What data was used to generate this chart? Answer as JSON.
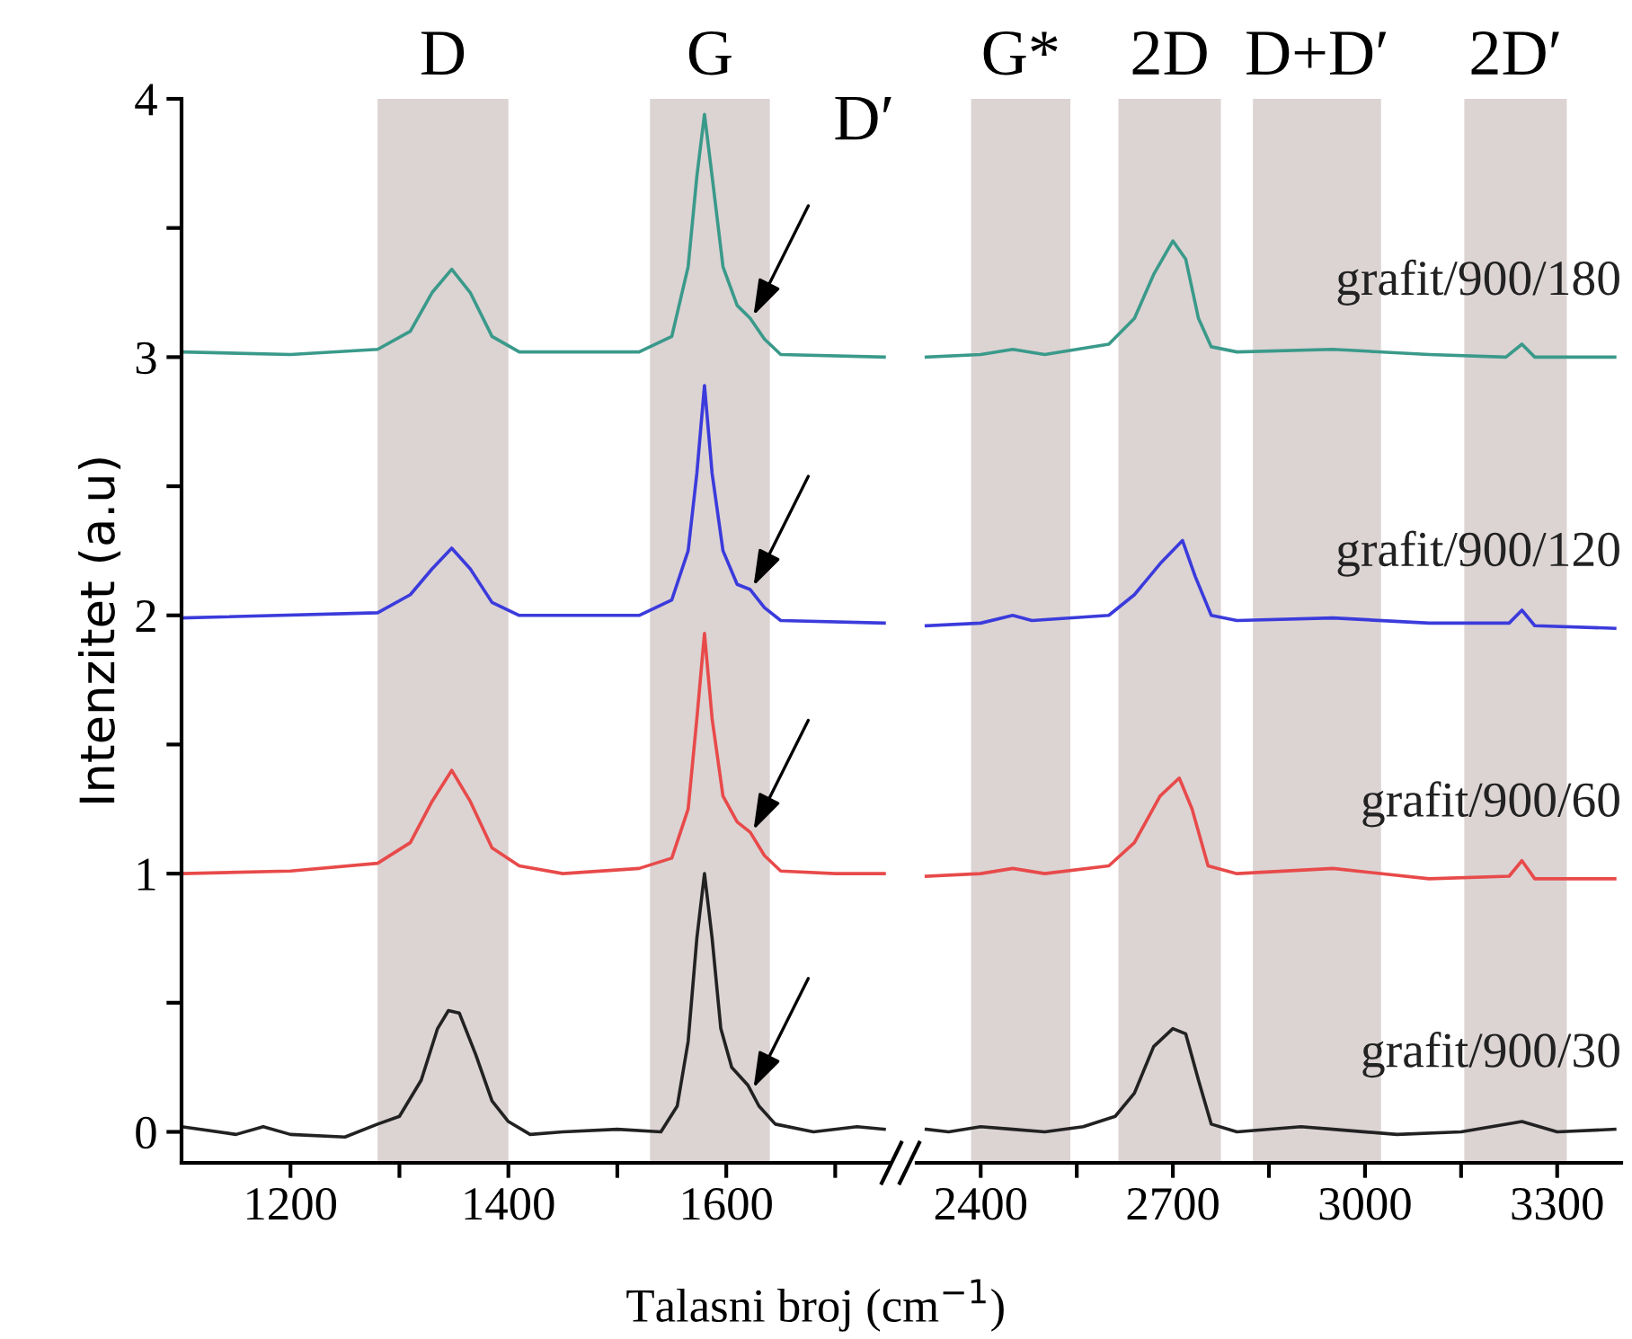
{
  "chart_data": [
    {
      "type": "line",
      "xlabel": "Talasni broj (cm$^{−1}$)",
      "ylabel": "Intenzitet (a.u)",
      "xlim": [
        1100,
        1750
      ],
      "ylim": [
        -0.12,
        4
      ],
      "xticks": [
        1200,
        {
          "value": 1300,
          "label": null
        },
        1400,
        {
          "value": 1500,
          "label": null
        },
        1600,
        {
          "value": 1700,
          "label": null
        }
      ],
      "yticks": [
        0,
        {
          "value": 0.5,
          "label": null
        },
        1,
        {
          "value": 1.5,
          "label": null
        },
        2,
        {
          "value": 2.5,
          "label": null
        },
        3,
        {
          "value": 3.5,
          "label": null
        },
        4
      ],
      "grid": false,
      "legend": false,
      "bands": [
        {
          "axis": "x",
          "from": 1280,
          "to": 1400,
          "label": "D",
          "color": "#dcd3d3"
        },
        {
          "axis": "x",
          "from": 1530,
          "to": 1640,
          "label": "G",
          "color": "#dcd3d3"
        }
      ],
      "annotations": [
        {
          "text": "D′",
          "x": 1625,
          "y": 3.16
        }
      ],
      "series": [
        {
          "color": "#222222",
          "x": [
            1100,
            1150,
            1175,
            1200,
            1250,
            1280,
            1300,
            1320,
            1335,
            1345,
            1355,
            1370,
            1385,
            1400,
            1420,
            1450,
            1500,
            1540,
            1555,
            1565,
            1573,
            1580,
            1587,
            1595,
            1605,
            1620,
            1630,
            1645,
            1680,
            1720,
            1745
          ],
          "values": [
            0.02,
            -0.01,
            0.02,
            -0.01,
            -0.02,
            0.03,
            0.06,
            0.2,
            0.4,
            0.47,
            0.46,
            0.3,
            0.12,
            0.04,
            -0.01,
            0,
            0.01,
            0,
            0.1,
            0.35,
            0.75,
            1.0,
            0.75,
            0.4,
            0.25,
            0.18,
            0.1,
            0.03,
            0,
            0.02,
            0.01
          ]
        },
        {
          "color": "#e84a4a",
          "x": [
            1100,
            1200,
            1280,
            1310,
            1330,
            1348,
            1365,
            1385,
            1410,
            1450,
            1520,
            1550,
            1565,
            1573,
            1580,
            1587,
            1597,
            1610,
            1622,
            1635,
            1650,
            1700,
            1745
          ],
          "values": [
            1.0,
            1.01,
            1.04,
            1.12,
            1.28,
            1.4,
            1.28,
            1.1,
            1.03,
            1.0,
            1.02,
            1.06,
            1.25,
            1.6,
            1.93,
            1.6,
            1.3,
            1.2,
            1.16,
            1.07,
            1.01,
            1.0,
            1.0
          ]
        },
        {
          "color": "#3b3bdc",
          "x": [
            1100,
            1280,
            1310,
            1330,
            1348,
            1365,
            1385,
            1410,
            1520,
            1550,
            1565,
            1573,
            1580,
            1587,
            1597,
            1610,
            1622,
            1635,
            1650,
            1745
          ],
          "values": [
            1.99,
            2.01,
            2.08,
            2.18,
            2.26,
            2.18,
            2.05,
            2.0,
            2.0,
            2.06,
            2.25,
            2.55,
            2.89,
            2.55,
            2.25,
            2.12,
            2.1,
            2.03,
            1.98,
            1.97
          ]
        },
        {
          "color": "#3a9a8a",
          "x": [
            1100,
            1200,
            1280,
            1310,
            1330,
            1348,
            1365,
            1385,
            1410,
            1520,
            1550,
            1565,
            1573,
            1580,
            1587,
            1597,
            1610,
            1622,
            1635,
            1650,
            1745
          ],
          "values": [
            3.02,
            3.01,
            3.03,
            3.1,
            3.25,
            3.34,
            3.25,
            3.08,
            3.02,
            3.02,
            3.08,
            3.35,
            3.7,
            3.94,
            3.7,
            3.35,
            3.2,
            3.15,
            3.07,
            3.01,
            3.0
          ]
        }
      ]
    },
    {
      "type": "line",
      "xlim": [
        2300,
        3400
      ],
      "ylim": [
        -0.12,
        4
      ],
      "tick_labels": "x",
      "xticks": [
        2400,
        {
          "value": 2550,
          "label": null
        },
        2700,
        {
          "value": 2850,
          "label": null
        },
        3000,
        {
          "value": 3150,
          "label": null
        },
        3300
      ],
      "grid": false,
      "legend": false,
      "bands": [
        {
          "axis": "x",
          "from": 2385,
          "to": 2540,
          "label": "G*",
          "color": "#dcd3d3"
        },
        {
          "axis": "x",
          "from": 2615,
          "to": 2775,
          "label": "2D",
          "color": "#dcd3d3"
        },
        {
          "axis": "x",
          "from": 2825,
          "to": 3025,
          "label": "D+D′",
          "color": "#dcd3d3"
        },
        {
          "axis": "x",
          "from": 3155,
          "to": 3315,
          "label": "2D′",
          "color": "#dcd3d3"
        }
      ],
      "series": [
        {
          "name": "grafit/900/30",
          "color": "#222222",
          "x": [
            2315,
            2350,
            2400,
            2450,
            2500,
            2560,
            2610,
            2640,
            2670,
            2700,
            2720,
            2740,
            2760,
            2800,
            2900,
            2950,
            3050,
            3150,
            3245,
            3300,
            3390
          ],
          "values": [
            0.01,
            0.0,
            0.02,
            0.01,
            0.0,
            0.02,
            0.06,
            0.15,
            0.33,
            0.4,
            0.38,
            0.2,
            0.03,
            0.0,
            0.02,
            0.01,
            -0.01,
            0.0,
            0.04,
            0.0,
            0.01
          ]
        },
        {
          "name": "grafit/900/60",
          "color": "#e84a4a",
          "x": [
            2315,
            2400,
            2450,
            2500,
            2600,
            2640,
            2680,
            2710,
            2730,
            2755,
            2800,
            2950,
            3100,
            3225,
            3245,
            3265,
            3390
          ],
          "values": [
            0.99,
            1.0,
            1.02,
            1.0,
            1.03,
            1.12,
            1.3,
            1.37,
            1.25,
            1.03,
            1.0,
            1.02,
            0.98,
            0.99,
            1.05,
            0.98,
            0.98
          ]
        },
        {
          "name": "grafit/900/120",
          "color": "#3b3bdc",
          "x": [
            2315,
            2400,
            2450,
            2480,
            2600,
            2640,
            2680,
            2715,
            2735,
            2760,
            2800,
            2950,
            3100,
            3225,
            3245,
            3265,
            3390
          ],
          "values": [
            1.96,
            1.97,
            2.0,
            1.98,
            2.0,
            2.08,
            2.2,
            2.29,
            2.15,
            2.0,
            1.98,
            1.99,
            1.97,
            1.97,
            2.02,
            1.96,
            1.95
          ]
        },
        {
          "name": "grafit/900/180",
          "color": "#3a9a8a",
          "x": [
            2315,
            2400,
            2450,
            2500,
            2600,
            2640,
            2670,
            2700,
            2720,
            2740,
            2760,
            2800,
            2950,
            3100,
            3220,
            3245,
            3265,
            3390
          ],
          "values": [
            3.0,
            3.01,
            3.03,
            3.01,
            3.05,
            3.15,
            3.32,
            3.45,
            3.38,
            3.15,
            3.04,
            3.02,
            3.03,
            3.01,
            3.0,
            3.05,
            3.0,
            3.0
          ]
        }
      ]
    }
  ]
}
